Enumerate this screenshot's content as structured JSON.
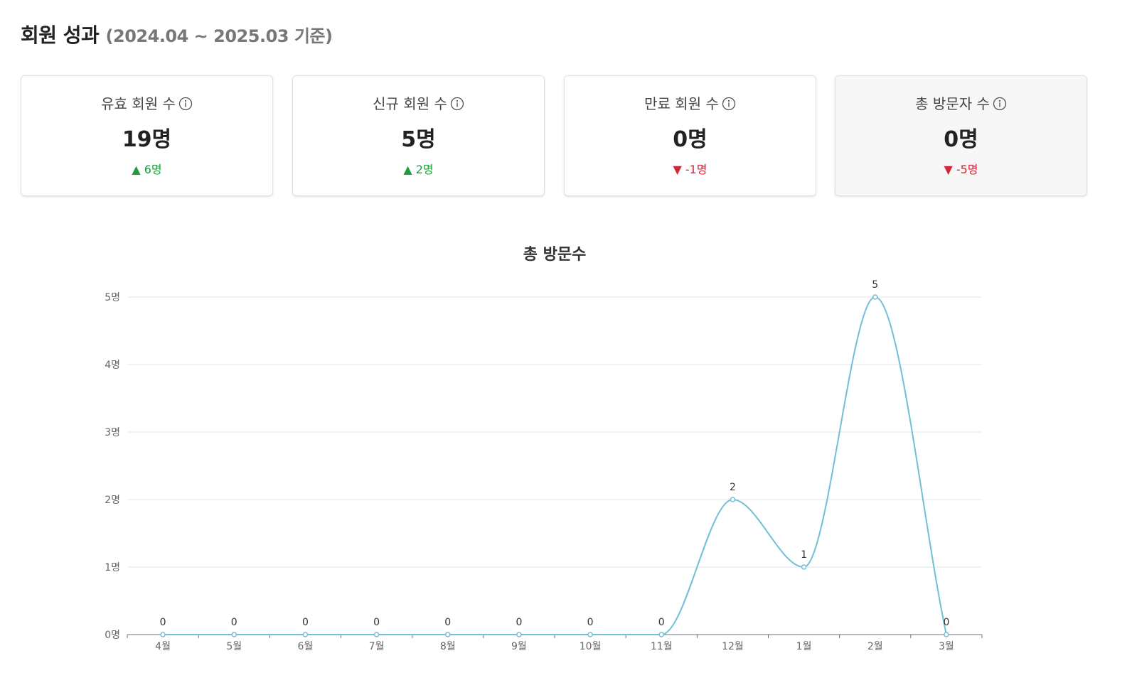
{
  "header": {
    "title": "회원 성과",
    "period": "(2024.04 ~ 2025.03 기준)"
  },
  "cards": [
    {
      "label": "유효 회원 수",
      "value": "19명",
      "change": "▲ 6명",
      "direction": "up"
    },
    {
      "label": "신규 회원 수",
      "value": "5명",
      "change": "▲ 2명",
      "direction": "up"
    },
    {
      "label": "만료 회원 수",
      "value": "0명",
      "change": "▼ -1명",
      "direction": "down"
    },
    {
      "label": "총 방문자 수",
      "value": "0명",
      "change": "▼ -5명",
      "direction": "down"
    }
  ],
  "colors": {
    "line": "#72bfd6",
    "up": "#1e9e3e",
    "down": "#d22535",
    "grid": "#e3e6ee"
  },
  "chart_data": {
    "type": "line",
    "title": "총 방문수",
    "categories": [
      "4월",
      "5월",
      "6월",
      "7월",
      "8월",
      "9월",
      "10월",
      "11월",
      "12월",
      "1월",
      "2월",
      "3월"
    ],
    "values": [
      0,
      0,
      0,
      0,
      0,
      0,
      0,
      0,
      2,
      1,
      5,
      0
    ],
    "data_labels": [
      "0",
      "0",
      "0",
      "0",
      "0",
      "0",
      "0",
      "0",
      "2",
      "1",
      "5",
      "0"
    ],
    "y_ticks": [
      "0명",
      "1명",
      "2명",
      "3명",
      "4명",
      "5명"
    ],
    "ylim": [
      0,
      5
    ],
    "smooth": true,
    "grid": true,
    "legend": "none"
  }
}
